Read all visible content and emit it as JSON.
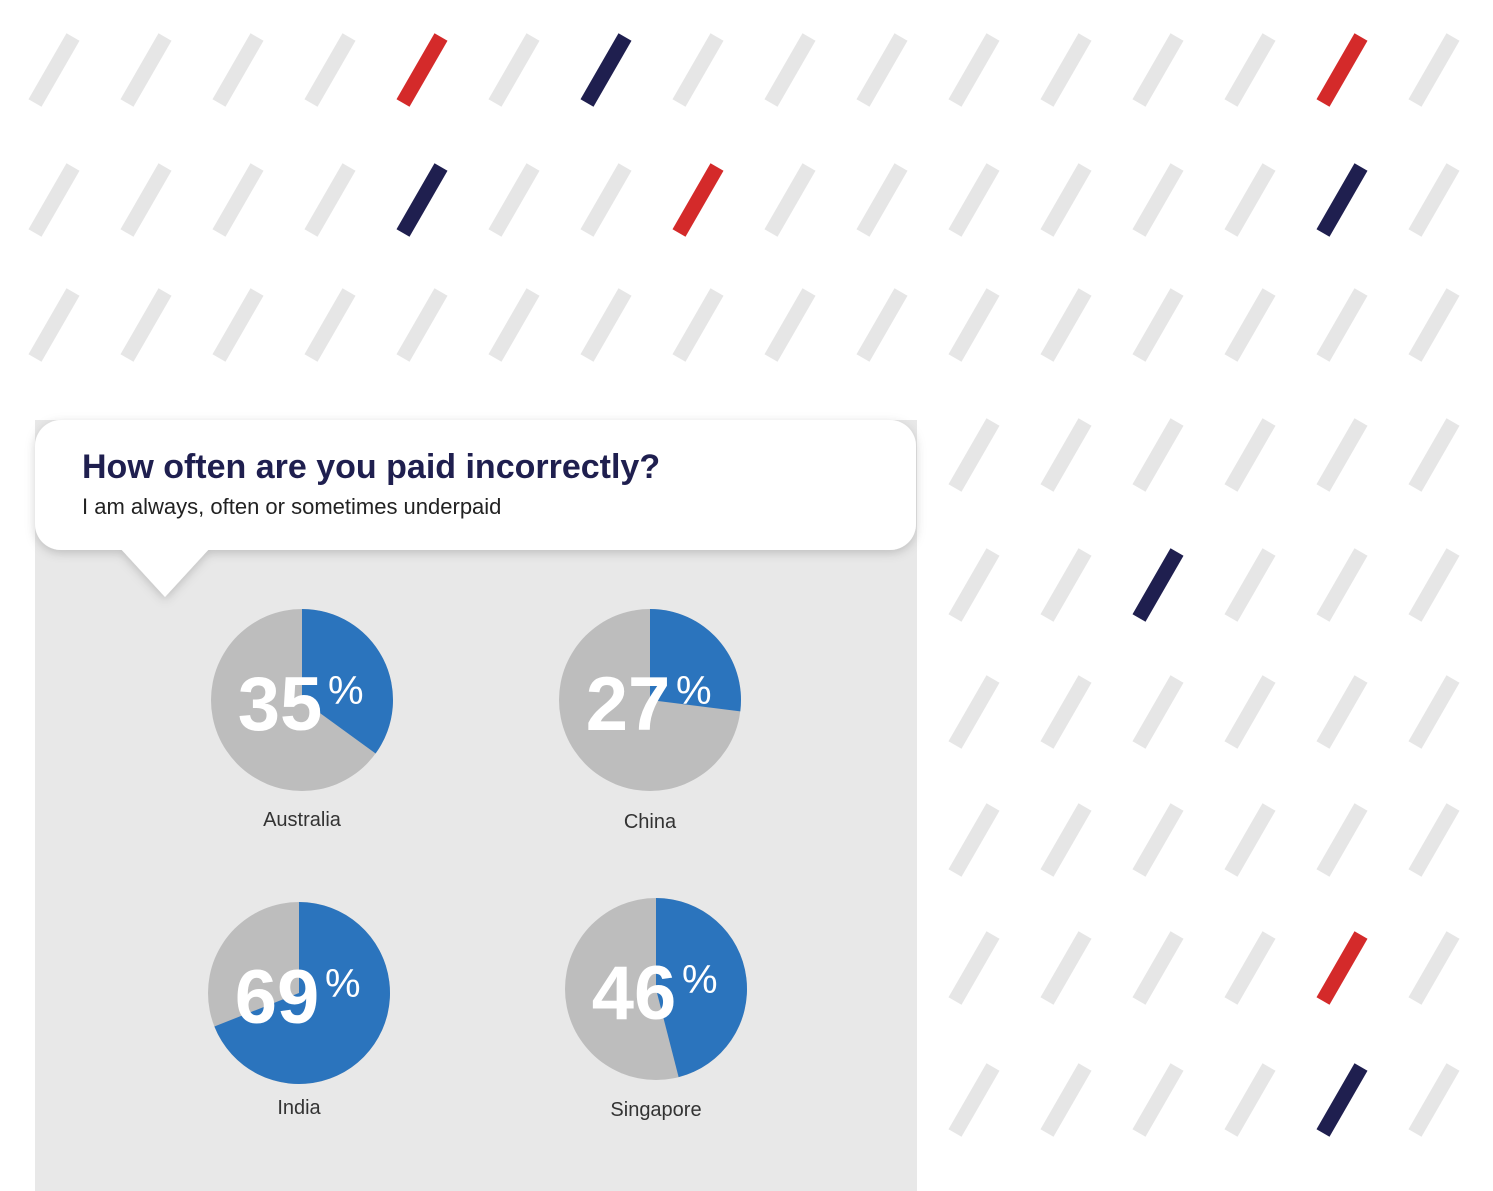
{
  "title": "How often are you paid incorrectly?",
  "subtitle": "I am always, often or sometimes underpaid",
  "chart_data": [
    {
      "type": "pie",
      "title": "Australia",
      "values": [
        35
      ],
      "unit": "%",
      "color": "#2b74bd",
      "rest_color": "#bdbdbd"
    },
    {
      "type": "pie",
      "title": "China",
      "values": [
        27
      ],
      "unit": "%",
      "color": "#2b74bd",
      "rest_color": "#bdbdbd"
    },
    {
      "type": "pie",
      "title": "India",
      "values": [
        69
      ],
      "unit": "%",
      "color": "#2b74bd",
      "rest_color": "#bdbdbd"
    },
    {
      "type": "pie",
      "title": "Singapore",
      "values": [
        46
      ],
      "unit": "%",
      "color": "#2b74bd",
      "rest_color": "#bdbdbd"
    }
  ]
}
